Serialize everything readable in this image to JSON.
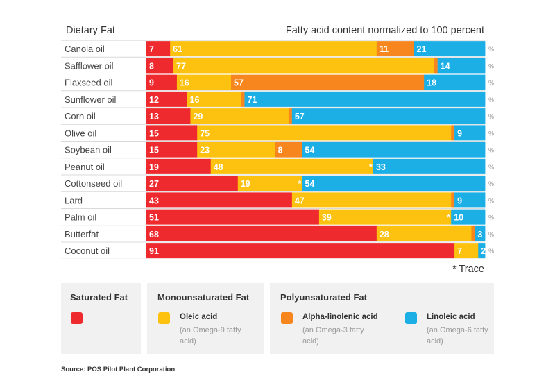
{
  "chart_data": {
    "type": "bar",
    "stacked": true,
    "orientation": "horizontal",
    "title_left": "Dietary Fat",
    "title_right": "Fatty acid content normalized to 100 percent",
    "unit_symbol": "%",
    "xlim": [
      0,
      100
    ],
    "trace_note": "* Trace",
    "trace_marker": "*",
    "categories": [
      "Canola oil",
      "Safflower oil",
      "Flaxseed oil",
      "Sunflower oil",
      "Corn oil",
      "Olive oil",
      "Soybean oil",
      "Peanut oil",
      "Cottonseed oil",
      "Lard",
      "Palm oil",
      "Butterfat",
      "Coconut oil"
    ],
    "series": [
      {
        "name": "Saturated Fat",
        "color": "#ee2a2e",
        "values": [
          7,
          8,
          9,
          12,
          13,
          15,
          15,
          19,
          27,
          43,
          51,
          68,
          91
        ]
      },
      {
        "name": "Oleic acid",
        "color": "#fdc20f",
        "values": [
          61,
          77,
          16,
          16,
          29,
          75,
          23,
          48,
          19,
          47,
          39,
          28,
          7
        ]
      },
      {
        "name": "Alpha-linolenic acid",
        "color": "#f7861e",
        "values": [
          11,
          1,
          57,
          1,
          1,
          1,
          8,
          0,
          0,
          1,
          0,
          1,
          0
        ]
      },
      {
        "name": "Linoleic acid",
        "color": "#1bafe6",
        "values": [
          21,
          14,
          18,
          71,
          57,
          9,
          54,
          33,
          54,
          9,
          10,
          3,
          2
        ]
      }
    ],
    "trace_cells": [
      [
        7,
        2
      ],
      [
        8,
        2
      ],
      [
        10,
        2
      ]
    ]
  },
  "legend": {
    "saturated_group": "Saturated Fat",
    "mono_group": "Monounsaturated Fat",
    "poly_group": "Polyunsaturated Fat",
    "oleic_name": "Oleic acid",
    "oleic_sub": "(an Omega-9 fatty acid)",
    "alpha_name": "Alpha-linolenic acid",
    "alpha_sub": "(an Omega-3 fatty acid)",
    "linoleic_name": "Linoleic acid",
    "linoleic_sub": "(an Omega-6 fatty acid)"
  },
  "source": "Source: POS Pilot Plant Corporation"
}
